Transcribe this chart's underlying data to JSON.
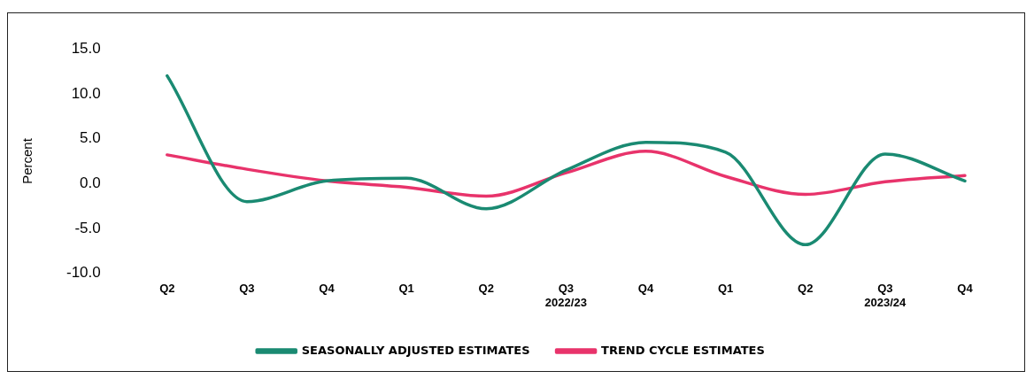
{
  "chart_data": {
    "type": "line",
    "ylabel": "Percent",
    "categories": [
      "Q2",
      "Q3",
      "Q4",
      "Q1",
      "Q2",
      "Q3\n2022/23",
      "Q4",
      "Q1",
      "Q2",
      "Q3\n2023/24",
      "Q4"
    ],
    "series": [
      {
        "name": "SEASONALLY ADJUSTED ESTIMATES",
        "color": "#1a8a72",
        "values": [
          12.0,
          -2.0,
          0.3,
          0.6,
          -2.8,
          1.5,
          4.6,
          3.5,
          -6.8,
          3.3,
          0.3
        ]
      },
      {
        "name": "TREND CYCLE ESTIMATES",
        "color": "#e8336b",
        "values": [
          3.2,
          1.6,
          0.3,
          -0.4,
          -1.4,
          1.2,
          3.6,
          0.8,
          -1.2,
          0.2,
          0.9
        ]
      }
    ],
    "ylim": [
      -10,
      15
    ],
    "yticks": [
      {
        "value": -10,
        "label": "-10.0"
      },
      {
        "value": -5,
        "label": "-5.0"
      },
      {
        "value": 0,
        "label": "0.0"
      },
      {
        "value": 5,
        "label": "5.0"
      },
      {
        "value": 10,
        "label": "10.0"
      },
      {
        "value": 15,
        "label": "15.0"
      }
    ],
    "grid": false,
    "legend": "bottom",
    "marker": "none",
    "line_style": "solid"
  }
}
